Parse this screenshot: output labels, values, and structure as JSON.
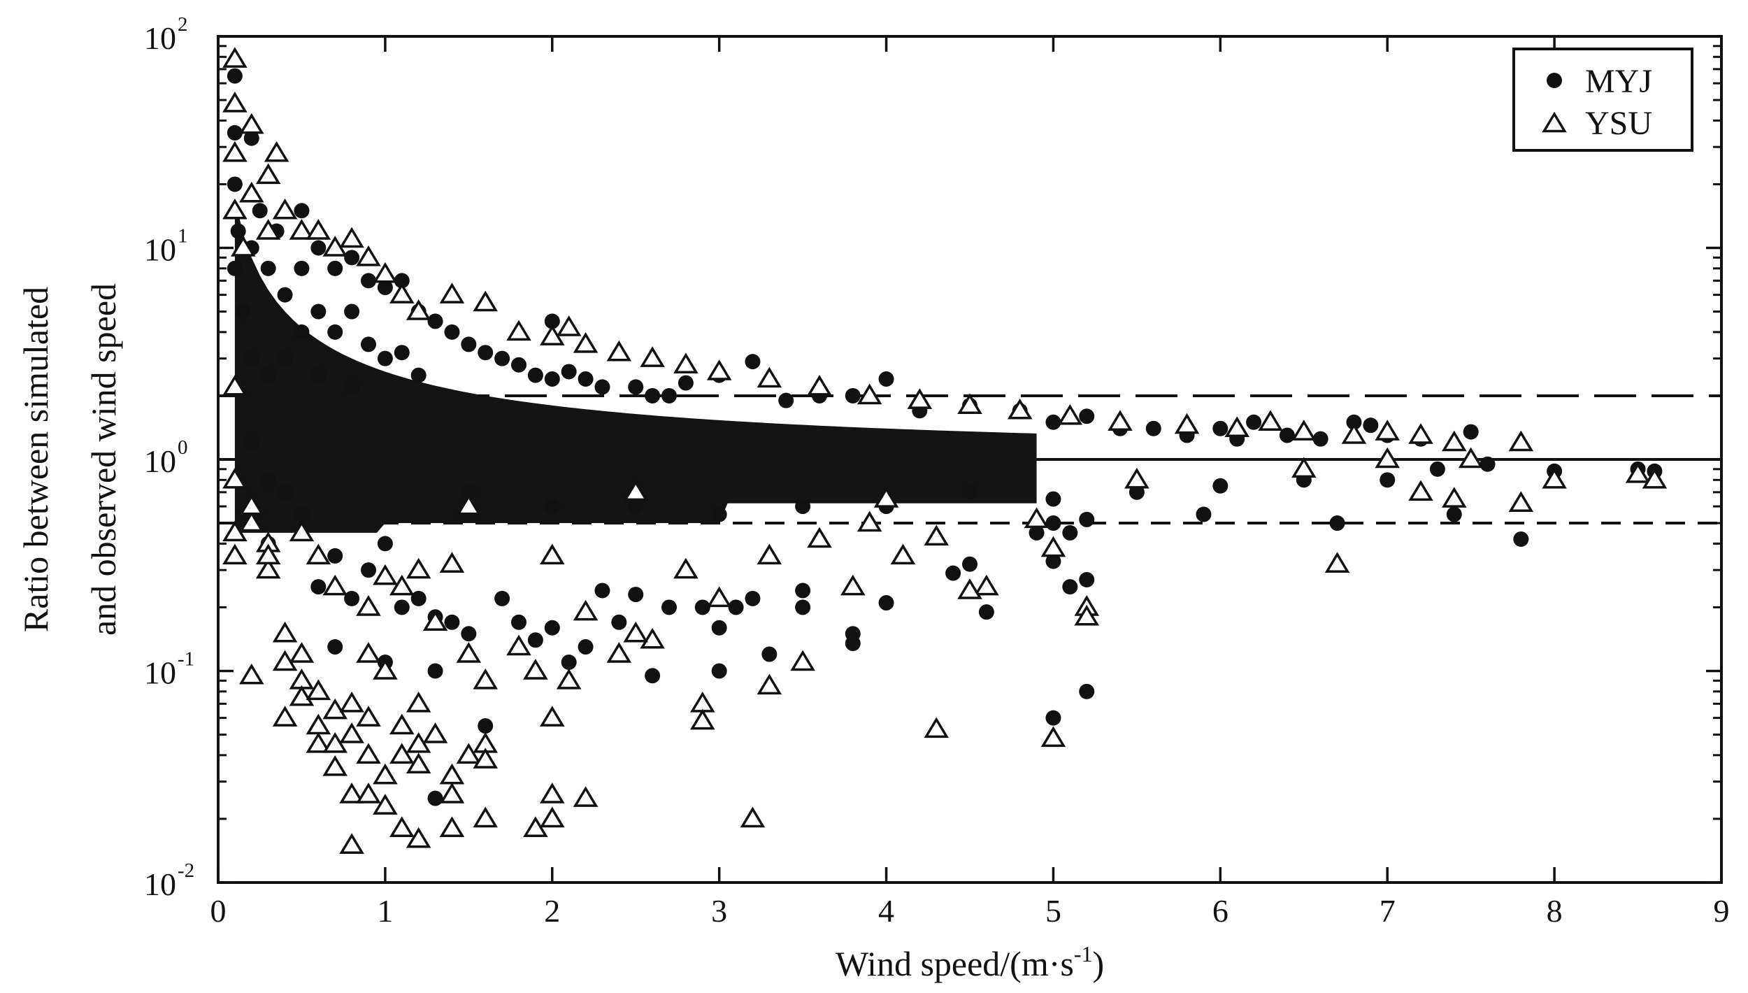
{
  "chart_data": {
    "type": "scatter",
    "title": "",
    "xlabel": "Wind speed/(m·s",
    "xlabel_exp": "-1",
    "xlabel_tail": ")",
    "ylabel_line1": "Ratio between simulated",
    "ylabel_line2": "and observed wind speed",
    "xlim": [
      0,
      9
    ],
    "ylim": [
      0.01,
      100
    ],
    "y_scale": "log",
    "grid": false,
    "legend_position": "top-right",
    "x_ticks": [
      {
        "value": 0,
        "label": "0"
      },
      {
        "value": 1,
        "label": "1"
      },
      {
        "value": 2,
        "label": "2"
      },
      {
        "value": 3,
        "label": "3"
      },
      {
        "value": 4,
        "label": "4"
      },
      {
        "value": 5,
        "label": "5"
      },
      {
        "value": 6,
        "label": "6"
      },
      {
        "value": 7,
        "label": "7"
      },
      {
        "value": 8,
        "label": "8"
      },
      {
        "value": 9,
        "label": "9"
      }
    ],
    "y_ticks": [
      {
        "value": 0.01,
        "base": "10",
        "exp": "-2"
      },
      {
        "value": 0.1,
        "base": "10",
        "exp": "-1"
      },
      {
        "value": 1,
        "base": "10",
        "exp": "0"
      },
      {
        "value": 10,
        "base": "10",
        "exp": "1"
      },
      {
        "value": 100,
        "base": "10",
        "exp": "2"
      }
    ],
    "reference_lines": [
      {
        "y": 2,
        "style": "long-dash"
      },
      {
        "y": 1,
        "style": "solid"
      },
      {
        "y": 0.5,
        "style": "dash"
      }
    ],
    "series": [
      {
        "name": "MYJ",
        "marker": "filled-circle",
        "points": [
          [
            0.1,
            65
          ],
          [
            0.1,
            35
          ],
          [
            0.1,
            20
          ],
          [
            0.12,
            12
          ],
          [
            0.1,
            8
          ],
          [
            0.15,
            5
          ],
          [
            0.2,
            33
          ],
          [
            0.2,
            10
          ],
          [
            0.2,
            3
          ],
          [
            0.25,
            15
          ],
          [
            0.3,
            8
          ],
          [
            0.3,
            2.5
          ],
          [
            0.35,
            12
          ],
          [
            0.4,
            6
          ],
          [
            0.4,
            3
          ],
          [
            0.5,
            15
          ],
          [
            0.5,
            8
          ],
          [
            0.5,
            4
          ],
          [
            0.6,
            10
          ],
          [
            0.6,
            5
          ],
          [
            0.6,
            2.5
          ],
          [
            0.7,
            8
          ],
          [
            0.7,
            4
          ],
          [
            0.8,
            9
          ],
          [
            0.8,
            5
          ],
          [
            0.8,
            2.2
          ],
          [
            0.9,
            7
          ],
          [
            0.9,
            3.5
          ],
          [
            1.0,
            6.5
          ],
          [
            1.0,
            3
          ],
          [
            1.1,
            7
          ],
          [
            1.1,
            3.2
          ],
          [
            1.2,
            5
          ],
          [
            1.2,
            2.5
          ],
          [
            1.3,
            4.5
          ],
          [
            1.4,
            4
          ],
          [
            1.5,
            3.5
          ],
          [
            1.6,
            3.2
          ],
          [
            1.7,
            3
          ],
          [
            1.8,
            2.8
          ],
          [
            1.9,
            2.5
          ],
          [
            2.0,
            4.5
          ],
          [
            2.0,
            2.4
          ],
          [
            2.1,
            2.6
          ],
          [
            2.2,
            2.4
          ],
          [
            2.3,
            2.2
          ],
          [
            2.5,
            2.2
          ],
          [
            2.6,
            2.0
          ],
          [
            2.7,
            2.0
          ],
          [
            2.8,
            2.3
          ],
          [
            3.0,
            2.5
          ],
          [
            3.2,
            2.9
          ],
          [
            3.4,
            1.9
          ],
          [
            3.6,
            2.0
          ],
          [
            3.8,
            2.0
          ],
          [
            4.0,
            2.4
          ],
          [
            4.2,
            1.7
          ],
          [
            4.5,
            1.8
          ],
          [
            4.8,
            1.7
          ],
          [
            5.0,
            1.5
          ],
          [
            5.2,
            1.6
          ],
          [
            5.4,
            1.4
          ],
          [
            5.6,
            1.4
          ],
          [
            5.8,
            1.3
          ],
          [
            6.0,
            1.4
          ],
          [
            6.1,
            1.25
          ],
          [
            6.2,
            1.5
          ],
          [
            6.4,
            1.3
          ],
          [
            6.6,
            1.25
          ],
          [
            6.8,
            1.5
          ],
          [
            6.9,
            1.45
          ],
          [
            7.0,
            1.3
          ],
          [
            7.2,
            1.25
          ],
          [
            7.5,
            1.35
          ],
          [
            7.6,
            0.95
          ],
          [
            8.0,
            0.88
          ],
          [
            8.5,
            0.9
          ],
          [
            8.6,
            0.88
          ],
          [
            7.8,
            0.42
          ],
          [
            7.4,
            0.55
          ],
          [
            6.7,
            0.5
          ],
          [
            5.9,
            0.55
          ],
          [
            5.2,
            0.52
          ],
          [
            5.1,
            0.45
          ],
          [
            5.0,
            0.5
          ],
          [
            4.9,
            0.45
          ],
          [
            0.2,
            1.2
          ],
          [
            0.3,
            0.8
          ],
          [
            0.3,
            0.4
          ],
          [
            0.4,
            0.7
          ],
          [
            0.5,
            0.55
          ],
          [
            0.6,
            0.25
          ],
          [
            0.7,
            0.35
          ],
          [
            0.7,
            0.13
          ],
          [
            0.8,
            0.22
          ],
          [
            0.9,
            0.3
          ],
          [
            1.0,
            0.4
          ],
          [
            1.0,
            0.11
          ],
          [
            1.1,
            0.2
          ],
          [
            1.2,
            0.22
          ],
          [
            1.3,
            0.1
          ],
          [
            1.3,
            0.18
          ],
          [
            1.3,
            0.025
          ],
          [
            1.4,
            0.17
          ],
          [
            1.5,
            0.15
          ],
          [
            1.6,
            0.055
          ],
          [
            1.7,
            0.22
          ],
          [
            1.8,
            0.17
          ],
          [
            1.9,
            0.14
          ],
          [
            2.0,
            0.16
          ],
          [
            2.1,
            0.11
          ],
          [
            2.2,
            0.13
          ],
          [
            2.3,
            0.24
          ],
          [
            2.4,
            0.17
          ],
          [
            2.5,
            0.23
          ],
          [
            2.6,
            0.095
          ],
          [
            2.7,
            0.2
          ],
          [
            2.9,
            0.2
          ],
          [
            3.0,
            0.16
          ],
          [
            3.0,
            0.1
          ],
          [
            3.1,
            0.2
          ],
          [
            3.2,
            0.22
          ],
          [
            3.3,
            0.12
          ],
          [
            3.5,
            0.24
          ],
          [
            3.5,
            0.2
          ],
          [
            3.8,
            0.15
          ],
          [
            3.8,
            0.135
          ],
          [
            4.0,
            0.21
          ],
          [
            4.4,
            0.29
          ],
          [
            4.5,
            0.32
          ],
          [
            4.6,
            0.19
          ],
          [
            5.0,
            0.06
          ],
          [
            5.2,
            0.08
          ],
          [
            5.2,
            0.27
          ],
          [
            5.1,
            0.25
          ],
          [
            5.0,
            0.33
          ],
          [
            1.5,
            0.7
          ],
          [
            2.0,
            0.6
          ],
          [
            2.5,
            0.6
          ],
          [
            3.0,
            0.55
          ],
          [
            3.5,
            0.6
          ],
          [
            4.0,
            0.6
          ],
          [
            4.5,
            0.7
          ],
          [
            5.0,
            0.65
          ],
          [
            5.5,
            0.7
          ],
          [
            6.0,
            0.75
          ],
          [
            6.5,
            0.8
          ],
          [
            7.0,
            0.8
          ],
          [
            7.3,
            0.9
          ]
        ]
      },
      {
        "name": "YSU",
        "marker": "open-triangle",
        "points": [
          [
            0.1,
            78
          ],
          [
            0.1,
            48
          ],
          [
            0.1,
            28
          ],
          [
            0.1,
            15
          ],
          [
            0.15,
            10
          ],
          [
            0.2,
            38
          ],
          [
            0.2,
            18
          ],
          [
            0.3,
            22
          ],
          [
            0.3,
            12
          ],
          [
            0.35,
            28
          ],
          [
            0.4,
            15
          ],
          [
            0.5,
            12
          ],
          [
            0.6,
            12
          ],
          [
            0.7,
            10
          ],
          [
            0.8,
            11
          ],
          [
            0.9,
            9
          ],
          [
            1.0,
            7.5
          ],
          [
            1.1,
            6
          ],
          [
            1.2,
            5
          ],
          [
            1.4,
            6
          ],
          [
            1.6,
            5.5
          ],
          [
            1.8,
            4
          ],
          [
            2.0,
            3.8
          ],
          [
            2.1,
            4.2
          ],
          [
            2.2,
            3.5
          ],
          [
            2.4,
            3.2
          ],
          [
            2.6,
            3.0
          ],
          [
            2.8,
            2.8
          ],
          [
            3.0,
            2.6
          ],
          [
            3.3,
            2.4
          ],
          [
            3.6,
            2.2
          ],
          [
            3.9,
            2.0
          ],
          [
            4.2,
            1.9
          ],
          [
            4.5,
            1.8
          ],
          [
            4.8,
            1.7
          ],
          [
            5.1,
            1.6
          ],
          [
            5.4,
            1.5
          ],
          [
            5.8,
            1.45
          ],
          [
            6.1,
            1.4
          ],
          [
            6.3,
            1.5
          ],
          [
            6.5,
            1.35
          ],
          [
            6.8,
            1.3
          ],
          [
            7.0,
            1.35
          ],
          [
            7.2,
            1.3
          ],
          [
            7.4,
            1.2
          ],
          [
            7.8,
            1.2
          ],
          [
            8.0,
            0.8
          ],
          [
            8.5,
            0.85
          ],
          [
            8.6,
            0.8
          ],
          [
            7.8,
            0.62
          ],
          [
            7.4,
            0.65
          ],
          [
            7.2,
            0.7
          ],
          [
            6.7,
            0.32
          ],
          [
            5.2,
            0.2
          ],
          [
            5.2,
            0.18
          ],
          [
            5.0,
            0.38
          ],
          [
            4.9,
            0.52
          ],
          [
            4.6,
            0.25
          ],
          [
            4.5,
            0.24
          ],
          [
            0.1,
            2.2
          ],
          [
            0.1,
            0.8
          ],
          [
            0.1,
            0.45
          ],
          [
            0.1,
            0.35
          ],
          [
            0.2,
            0.5
          ],
          [
            0.2,
            0.095
          ],
          [
            0.3,
            0.4
          ],
          [
            0.3,
            0.3
          ],
          [
            0.4,
            0.15
          ],
          [
            0.4,
            0.11
          ],
          [
            0.4,
            0.06
          ],
          [
            0.5,
            0.12
          ],
          [
            0.5,
            0.09
          ],
          [
            0.5,
            0.075
          ],
          [
            0.6,
            0.08
          ],
          [
            0.6,
            0.055
          ],
          [
            0.6,
            0.045
          ],
          [
            0.7,
            0.065
          ],
          [
            0.7,
            0.045
          ],
          [
            0.7,
            0.035
          ],
          [
            0.8,
            0.07
          ],
          [
            0.8,
            0.05
          ],
          [
            0.8,
            0.026
          ],
          [
            0.8,
            0.015
          ],
          [
            0.9,
            0.12
          ],
          [
            0.9,
            0.06
          ],
          [
            0.9,
            0.04
          ],
          [
            0.9,
            0.026
          ],
          [
            1.0,
            0.1
          ],
          [
            1.0,
            0.032
          ],
          [
            1.0,
            0.023
          ],
          [
            1.1,
            0.055
          ],
          [
            1.1,
            0.04
          ],
          [
            1.1,
            0.018
          ],
          [
            1.2,
            0.07
          ],
          [
            1.2,
            0.045
          ],
          [
            1.2,
            0.036
          ],
          [
            1.2,
            0.016
          ],
          [
            1.3,
            0.05
          ],
          [
            1.4,
            0.032
          ],
          [
            1.4,
            0.026
          ],
          [
            1.4,
            0.018
          ],
          [
            1.5,
            0.04
          ],
          [
            1.6,
            0.045
          ],
          [
            1.6,
            0.038
          ],
          [
            1.6,
            0.02
          ],
          [
            1.9,
            0.018
          ],
          [
            2.0,
            0.026
          ],
          [
            2.0,
            0.02
          ],
          [
            2.0,
            0.06
          ],
          [
            2.2,
            0.025
          ],
          [
            3.2,
            0.02
          ],
          [
            4.3,
            0.053
          ],
          [
            5.0,
            0.048
          ],
          [
            2.9,
            0.07
          ],
          [
            2.9,
            0.058
          ],
          [
            3.3,
            0.085
          ],
          [
            1.6,
            0.09
          ],
          [
            1.9,
            0.1
          ],
          [
            2.1,
            0.09
          ],
          [
            2.4,
            0.12
          ],
          [
            2.6,
            0.14
          ],
          [
            3.5,
            0.11
          ],
          [
            3.8,
            0.25
          ],
          [
            4.3,
            0.43
          ],
          [
            4.1,
            0.35
          ],
          [
            3.0,
            0.22
          ],
          [
            3.3,
            0.35
          ],
          [
            2.5,
            0.15
          ],
          [
            2.2,
            0.19
          ],
          [
            1.8,
            0.13
          ],
          [
            1.5,
            0.12
          ],
          [
            1.3,
            0.17
          ],
          [
            1.1,
            0.25
          ],
          [
            0.9,
            0.2
          ],
          [
            0.7,
            0.25
          ],
          [
            0.6,
            0.35
          ],
          [
            0.5,
            0.45
          ],
          [
            0.3,
            0.35
          ],
          [
            0.2,
            0.6
          ],
          [
            1.4,
            0.32
          ],
          [
            1.2,
            0.3
          ],
          [
            1.0,
            0.28
          ],
          [
            3.6,
            0.42
          ],
          [
            3.9,
            0.5
          ],
          [
            2.8,
            0.3
          ],
          [
            2.0,
            0.35
          ],
          [
            1.5,
            0.6
          ],
          [
            2.5,
            0.7
          ],
          [
            4.0,
            0.65
          ],
          [
            5.5,
            0.8
          ],
          [
            6.5,
            0.9
          ],
          [
            7.0,
            1.0
          ],
          [
            7.5,
            1.0
          ]
        ]
      }
    ]
  }
}
